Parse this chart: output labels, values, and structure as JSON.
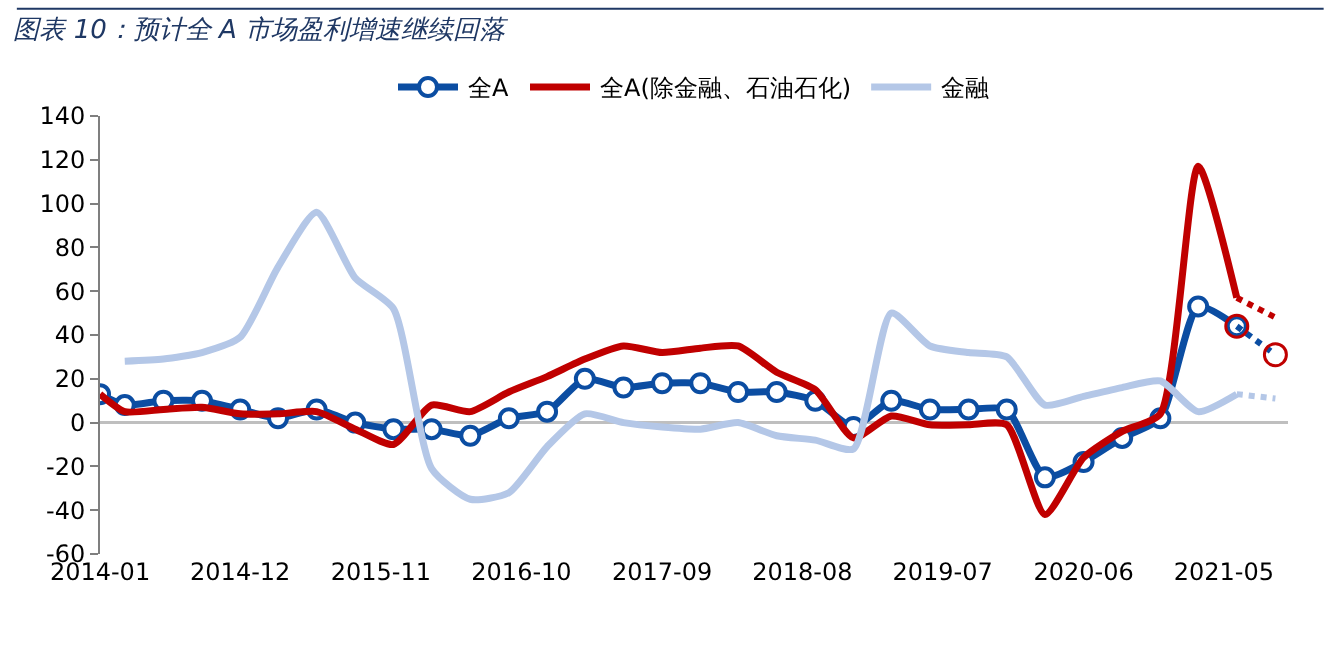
{
  "chart_data": {
    "type": "line",
    "title": "图表 10：预计全 A 市场盈利增速继续回落",
    "x": [
      "2014-01",
      "2014-03",
      "2014-06",
      "2014-09",
      "2014-12",
      "2015-03",
      "2015-06",
      "2015-09",
      "2015-12",
      "2016-03",
      "2016-06",
      "2016-09",
      "2016-12",
      "2017-03",
      "2017-06",
      "2017-09",
      "2017-12",
      "2018-03",
      "2018-06",
      "2018-09",
      "2018-12",
      "2019-03",
      "2019-06",
      "2019-09",
      "2019-12",
      "2020-03",
      "2020-06",
      "2020-09",
      "2020-12",
      "2021-03",
      "2021-06"
    ],
    "series": [
      {
        "name": "全A",
        "color": "#0b4da2",
        "marker": "circle",
        "line_style": "solid",
        "values": [
          13,
          8,
          10,
          10,
          6,
          2,
          6,
          0,
          -3,
          -3,
          -6,
          2,
          5,
          20,
          16,
          18,
          18,
          14,
          14,
          10,
          -2,
          10,
          6,
          6,
          6,
          -25,
          -18,
          -7,
          2,
          53,
          44
        ]
      },
      {
        "name": "全A(除金融、石油石化)",
        "color": "#c00000",
        "marker": "none",
        "line_style": "solid",
        "values": [
          13,
          5,
          6,
          7,
          4,
          4,
          5,
          -3,
          -10,
          8,
          5,
          14,
          21,
          29,
          35,
          32,
          34,
          35,
          23,
          15,
          -7,
          3,
          -1,
          -1,
          -1,
          -42,
          -16,
          -4,
          4,
          117,
          57
        ]
      },
      {
        "name": "金融",
        "color": "#b4c7e7",
        "marker": "none",
        "line_style": "solid",
        "values": [
          null,
          28,
          29,
          32,
          39,
          71,
          96,
          66,
          52,
          -21,
          -35,
          -32,
          -11,
          4,
          0,
          -2,
          -3,
          0,
          -6,
          -8,
          -12,
          50,
          35,
          32,
          30,
          8,
          12,
          16,
          19,
          5,
          13
        ]
      },
      {
        "type": "line",
        "color": "#0b4da2",
        "marker": "none",
        "line_style": "dotted",
        "x": [
          "2021-06",
          "2021-09"
        ],
        "values": [
          44,
          31
        ]
      },
      {
        "type": "line",
        "color": "#c00000",
        "marker": "none",
        "line_style": "dotted",
        "x": [
          "2021-06",
          "2021-09"
        ],
        "values": [
          57,
          48
        ]
      },
      {
        "type": "line",
        "color": "#b4c7e7",
        "marker": "none",
        "line_style": "dotted",
        "x": [
          "2021-06",
          "2021-09"
        ],
        "values": [
          13,
          11
        ]
      },
      {
        "type": "scatter",
        "color": "#c00000",
        "marker": "circle",
        "x": [
          "2021-06",
          "2021-09"
        ],
        "values": [
          44,
          31
        ]
      }
    ],
    "xlim": [
      "2014-01",
      "2021-10"
    ],
    "xticks": [
      {
        "value": "2014-01",
        "label": "2014-01"
      },
      {
        "value": "2014-12",
        "label": "2014-12"
      },
      {
        "value": "2015-11",
        "label": "2015-11"
      },
      {
        "value": "2016-10",
        "label": "2016-10"
      },
      {
        "value": "2017-09",
        "label": "2017-09"
      },
      {
        "value": "2018-08",
        "label": "2018-08"
      },
      {
        "value": "2019-07",
        "label": "2019-07"
      },
      {
        "value": "2020-06",
        "label": "2020-06"
      },
      {
        "value": "2021-05",
        "label": "2021-05"
      }
    ],
    "ylim": [
      -60,
      140
    ],
    "yticks": [
      -60,
      -40,
      -20,
      0,
      20,
      40,
      60,
      80,
      100,
      120,
      140
    ],
    "ref_lines": [
      {
        "axis": "y",
        "value": 0,
        "color": "#bfbfbf"
      }
    ],
    "grid": false,
    "legend": "top"
  }
}
